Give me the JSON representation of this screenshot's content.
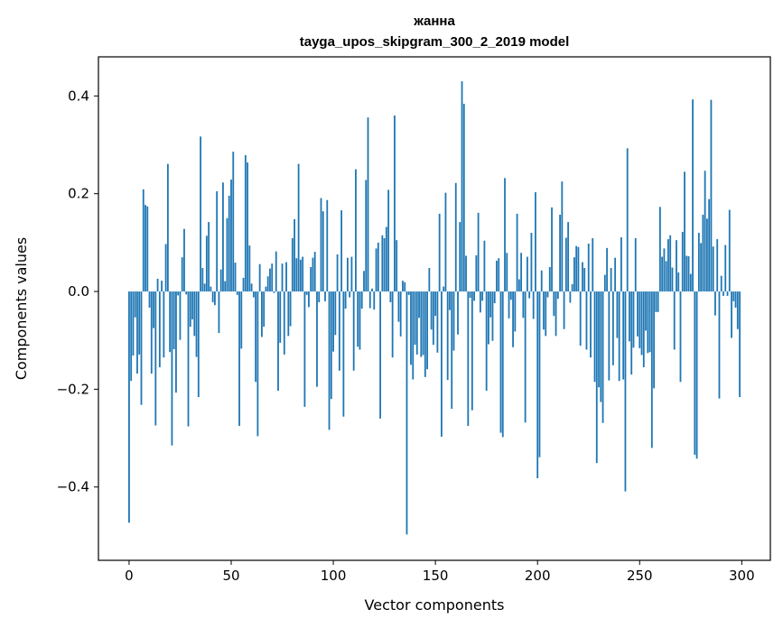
{
  "chart_data": {
    "type": "bar",
    "title": "жанна",
    "subtitle": "tayga_upos_skipgram_300_2_2019 model",
    "xlabel": "Vector components",
    "ylabel": "Components values",
    "xlim": [
      -15,
      314
    ],
    "ylim": [
      -0.55,
      0.48
    ],
    "xticks": [
      0,
      50,
      100,
      150,
      200,
      250,
      300
    ],
    "yticks": [
      -0.4,
      -0.2,
      0.0,
      0.2,
      0.4
    ],
    "ytick_labels": [
      "−0.4",
      "−0.2",
      "0.0",
      "0.2",
      "0.4"
    ],
    "bar_color": "#1f77b4",
    "x": "0..299 (vector component index)",
    "values": [
      -0.473,
      -0.183,
      -0.131,
      -0.053,
      -0.168,
      -0.129,
      -0.232,
      0.209,
      0.177,
      0.174,
      -0.033,
      -0.168,
      -0.075,
      -0.274,
      0.026,
      -0.155,
      0.022,
      -0.135,
      0.097,
      0.261,
      -0.124,
      -0.315,
      -0.118,
      -0.207,
      -0.008,
      -0.099,
      0.07,
      0.128,
      -0.006,
      -0.276,
      -0.072,
      -0.057,
      -0.091,
      -0.134,
      -0.216,
      0.317,
      0.048,
      0.016,
      0.114,
      0.142,
      0.01,
      -0.022,
      -0.028,
      0.205,
      -0.085,
      0.045,
      0.223,
      0.021,
      0.15,
      0.196,
      0.229,
      0.286,
      0.059,
      -0.007,
      -0.275,
      -0.117,
      0.028,
      0.279,
      0.264,
      0.094,
      0.016,
      -0.012,
      -0.185,
      -0.296,
      0.056,
      -0.093,
      -0.072,
      0.01,
      0.031,
      0.047,
      0.057,
      -0.003,
      0.082,
      -0.203,
      -0.105,
      0.057,
      -0.129,
      0.06,
      -0.091,
      -0.071,
      0.109,
      0.148,
      0.068,
      0.261,
      0.065,
      0.071,
      -0.236,
      -0.007,
      -0.032,
      0.05,
      0.069,
      0.081,
      -0.195,
      -0.022,
      0.191,
      0.164,
      -0.02,
      0.187,
      -0.283,
      -0.22,
      -0.123,
      -0.089,
      0.076,
      -0.162,
      0.166,
      -0.256,
      -0.035,
      0.069,
      -0.012,
      0.071,
      -0.162,
      0.25,
      -0.113,
      -0.119,
      -0.035,
      0.042,
      0.228,
      0.356,
      -0.034,
      0.006,
      -0.037,
      0.088,
      0.1,
      -0.26,
      0.115,
      0.109,
      0.132,
      0.208,
      -0.022,
      -0.135,
      0.36,
      0.105,
      -0.062,
      -0.092,
      0.022,
      0.019,
      -0.497,
      -0.007,
      -0.15,
      -0.18,
      -0.109,
      -0.129,
      -0.054,
      -0.134,
      -0.13,
      -0.175,
      -0.159,
      0.048,
      -0.078,
      -0.109,
      -0.05,
      -0.125,
      0.159,
      -0.297,
      0.01,
      0.202,
      -0.181,
      -0.038,
      -0.24,
      -0.121,
      0.222,
      -0.088,
      0.142,
      0.43,
      0.384,
      0.073,
      -0.275,
      -0.013,
      -0.243,
      -0.019,
      0.074,
      0.161,
      -0.043,
      -0.019,
      0.104,
      -0.203,
      -0.108,
      -0.053,
      -0.101,
      -0.024,
      0.063,
      0.068,
      -0.289,
      -0.298,
      0.232,
      0.079,
      -0.055,
      -0.017,
      -0.114,
      -0.082,
      0.159,
      0.025,
      0.079,
      -0.054,
      -0.268,
      0.071,
      -0.014,
      0.12,
      -0.056,
      0.203,
      -0.382,
      -0.339,
      0.043,
      -0.078,
      -0.091,
      -0.012,
      0.05,
      0.172,
      -0.05,
      -0.091,
      -0.015,
      0.157,
      0.225,
      -0.077,
      0.11,
      0.142,
      -0.023,
      0.015,
      0.07,
      0.093,
      0.091,
      -0.111,
      0.06,
      0.048,
      -0.119,
      0.098,
      -0.135,
      0.109,
      -0.185,
      -0.351,
      -0.196,
      -0.226,
      -0.269,
      0.034,
      0.089,
      -0.182,
      0.048,
      -0.151,
      0.069,
      -0.095,
      -0.183,
      0.111,
      -0.18,
      -0.409,
      0.293,
      -0.102,
      -0.17,
      -0.115,
      0.109,
      -0.092,
      -0.116,
      -0.13,
      -0.155,
      -0.08,
      -0.126,
      -0.124,
      -0.32,
      -0.198,
      -0.042,
      -0.042,
      0.173,
      0.071,
      0.088,
      0.062,
      0.107,
      0.115,
      0.049,
      -0.119,
      0.105,
      0.039,
      -0.185,
      0.122,
      0.245,
      0.073,
      0.072,
      0.036,
      0.393,
      -0.334,
      -0.342,
      0.12,
      0.099,
      0.157,
      0.247,
      0.149,
      0.189,
      0.392,
      0.092,
      -0.049,
      0.107,
      -0.219,
      0.032,
      -0.009,
      0.095,
      -0.009,
      0.167,
      -0.095,
      -0.02,
      -0.033,
      -0.077,
      -0.216
    ]
  }
}
